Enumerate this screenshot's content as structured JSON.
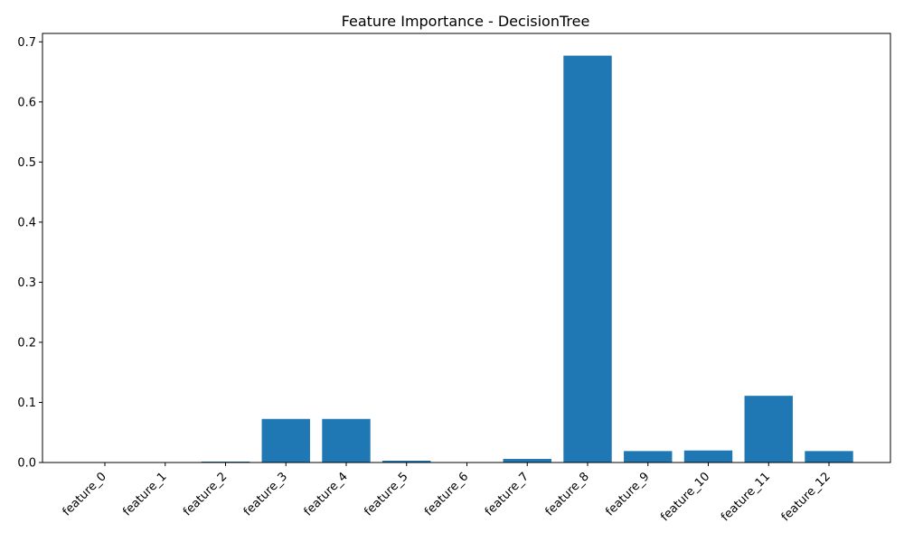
{
  "chart_data": {
    "type": "bar",
    "title": "Feature Importance - DecisionTree",
    "xlabel": "",
    "ylabel": "",
    "categories": [
      "feature_0",
      "feature_1",
      "feature_2",
      "feature_3",
      "feature_4",
      "feature_5",
      "feature_6",
      "feature_7",
      "feature_8",
      "feature_9",
      "feature_10",
      "feature_11",
      "feature_12"
    ],
    "values": [
      0.0,
      0.0,
      0.0015,
      0.0725,
      0.0725,
      0.003,
      0.0,
      0.006,
      0.677,
      0.019,
      0.02,
      0.111,
      0.019
    ],
    "ylim": [
      0,
      0.714
    ],
    "yticks": [
      "0.0",
      "0.1",
      "0.2",
      "0.3",
      "0.4",
      "0.5",
      "0.6",
      "0.7"
    ],
    "ytick_values": [
      0,
      0.1,
      0.2,
      0.3,
      0.4,
      0.5,
      0.6,
      0.7
    ],
    "bar_color": "#1f77b4",
    "grid": false,
    "xtick_rotation": 45
  }
}
